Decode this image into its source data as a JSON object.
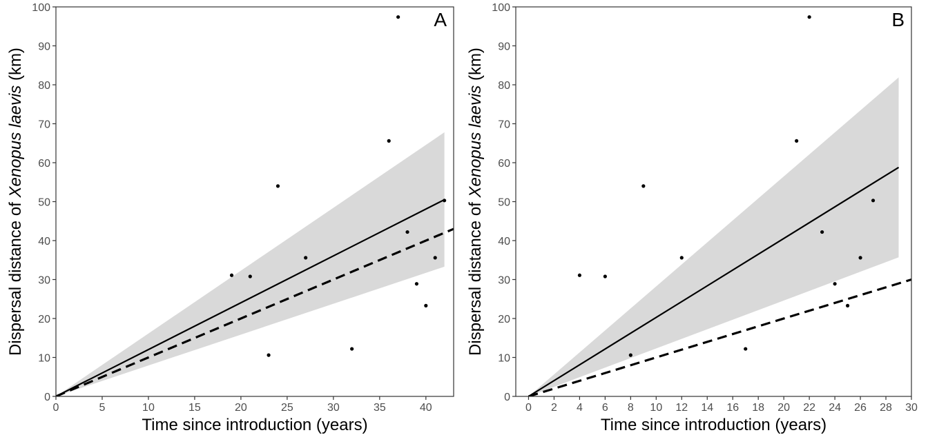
{
  "chart_data": [
    {
      "type": "scatter",
      "panel_label": "A",
      "xlabel": "Time since introduction (years)",
      "ylabel_prefix": "Dispersal distance of ",
      "ylabel_species": "Xenopus laevis",
      "ylabel_suffix": " (km)",
      "xlim": [
        0,
        43
      ],
      "ylim": [
        0,
        100
      ],
      "x_ticks": [
        0,
        5,
        10,
        15,
        20,
        25,
        30,
        35,
        40
      ],
      "y_ticks": [
        0,
        10,
        20,
        30,
        40,
        50,
        60,
        70,
        80,
        90,
        100
      ],
      "grid": false,
      "points": [
        {
          "x": 19,
          "y": 31.1
        },
        {
          "x": 21,
          "y": 30.8
        },
        {
          "x": 23,
          "y": 10.6
        },
        {
          "x": 24,
          "y": 54.0
        },
        {
          "x": 27,
          "y": 35.6
        },
        {
          "x": 32,
          "y": 12.2
        },
        {
          "x": 36,
          "y": 65.6
        },
        {
          "x": 37,
          "y": 97.4
        },
        {
          "x": 38,
          "y": 42.2
        },
        {
          "x": 39,
          "y": 28.9
        },
        {
          "x": 40,
          "y": 23.3
        },
        {
          "x": 41,
          "y": 35.6
        },
        {
          "x": 42,
          "y": 50.3
        }
      ],
      "fit_line": {
        "x": [
          0,
          42
        ],
        "y": [
          0,
          50.5
        ]
      },
      "confidence_band": {
        "x": [
          0,
          42
        ],
        "lower": [
          0,
          33.3
        ],
        "upper": [
          0,
          67.8
        ]
      },
      "dashed_line": {
        "x": [
          0,
          43
        ],
        "y": [
          0,
          43.0
        ]
      }
    },
    {
      "type": "scatter",
      "panel_label": "B",
      "xlabel": "Time since introduction (years)",
      "ylabel_prefix": "Dispersal distance of ",
      "ylabel_species": "Xenopus laevis",
      "ylabel_suffix": " (km)",
      "xlim": [
        -1,
        30
      ],
      "ylim": [
        0,
        100
      ],
      "x_ticks": [
        0,
        2,
        4,
        6,
        8,
        10,
        12,
        14,
        16,
        18,
        20,
        22,
        24,
        26,
        28,
        30
      ],
      "y_ticks": [
        0,
        10,
        20,
        30,
        40,
        50,
        60,
        70,
        80,
        90,
        100
      ],
      "grid": false,
      "points": [
        {
          "x": 4,
          "y": 31.1
        },
        {
          "x": 6,
          "y": 30.8
        },
        {
          "x": 8,
          "y": 10.6
        },
        {
          "x": 9,
          "y": 54.0
        },
        {
          "x": 12,
          "y": 35.6
        },
        {
          "x": 17,
          "y": 12.2
        },
        {
          "x": 21,
          "y": 65.6
        },
        {
          "x": 22,
          "y": 97.4
        },
        {
          "x": 23,
          "y": 42.2
        },
        {
          "x": 24,
          "y": 28.9
        },
        {
          "x": 25,
          "y": 23.3
        },
        {
          "x": 26,
          "y": 35.6
        },
        {
          "x": 27,
          "y": 50.3
        }
      ],
      "fit_line": {
        "x": [
          0,
          29
        ],
        "y": [
          0,
          58.8
        ]
      },
      "confidence_band": {
        "x": [
          0,
          29
        ],
        "lower": [
          0,
          35.7
        ],
        "upper": [
          0,
          81.9
        ]
      },
      "dashed_line": {
        "x": [
          0,
          30
        ],
        "y": [
          0,
          30.0
        ]
      }
    }
  ]
}
